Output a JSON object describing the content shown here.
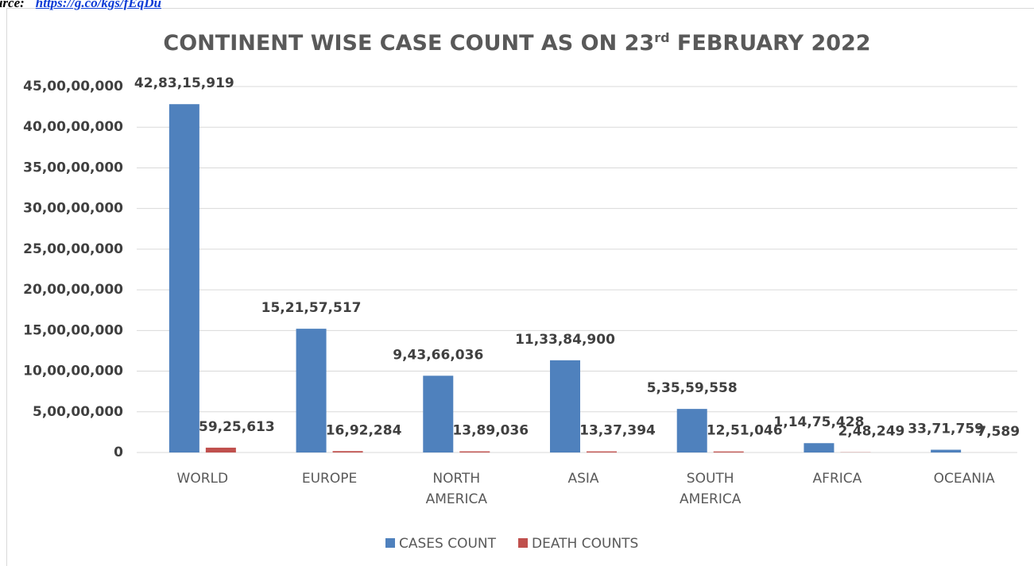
{
  "chart_data": {
    "type": "bar",
    "source_label": "Source:",
    "source_link": "https://g.co/kgs/fEqDu",
    "title": [
      "CONTINENT WISE CASE COUNT AS ON 23",
      "rd",
      " FEBRUARY 2022"
    ],
    "categories": [
      "WORLD",
      "EUROPE",
      "NORTH AMERICA",
      "ASIA",
      "SOUTH AMERICA",
      "AFRICA",
      "OCEANIA"
    ],
    "series": [
      {
        "name": "CASES COUNT",
        "color": "#4f81bd",
        "values": [
          428315919,
          152157517,
          94366036,
          113384900,
          53559558,
          11475428,
          3371759
        ],
        "value_labels": [
          "42,83,15,919",
          "15,21,57,517",
          "9,43,66,036",
          "11,33,84,900",
          "5,35,59,558",
          "1,14,75,428",
          "33,71,759"
        ]
      },
      {
        "name": "DEATH COUNTS",
        "color": "#c0504d",
        "values": [
          5925613,
          1692284,
          1389036,
          1337394,
          1251046,
          248249,
          7589
        ],
        "value_labels": [
          "59,25,613",
          "16,92,284",
          "13,89,036",
          "13,37,394",
          "12,51,046",
          "2,48,249",
          "7,589"
        ]
      }
    ],
    "ylim": [
      0,
      450000000
    ],
    "yticks": [
      0,
      {
        "value": 50000000,
        "label": "5,00,00,000"
      },
      {
        "value": 100000000,
        "label": "10,00,00,000"
      },
      {
        "value": 150000000,
        "label": "15,00,00,000"
      },
      {
        "value": 200000000,
        "label": "20,00,00,000"
      },
      {
        "value": 250000000,
        "label": "25,00,00,000"
      },
      {
        "value": 300000000,
        "label": "30,00,00,000"
      },
      {
        "value": 350000000,
        "label": "35,00,00,000"
      },
      {
        "value": 400000000,
        "label": "40,00,00,000"
      },
      {
        "value": 450000000,
        "label": "45,00,00,000"
      }
    ],
    "grid": true,
    "legend": "bottom"
  }
}
